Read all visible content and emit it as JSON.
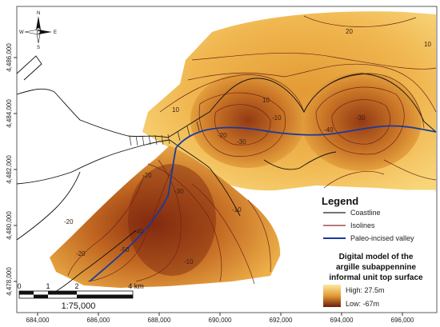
{
  "map": {
    "x_ticks": [
      "684,000",
      "686,000",
      "688,000",
      "690,000",
      "692,000",
      "694,000",
      "696,000"
    ],
    "y_ticks": [
      "4,486,000",
      "4,484,000",
      "4,482,000",
      "4,480,000",
      "4,478,000"
    ],
    "contour_labels": [
      "20",
      "10",
      "10",
      "-10",
      "-20",
      "-30",
      "-40",
      "-20",
      "-30",
      "-20",
      "-40",
      "-50",
      "-10",
      "10",
      "-30",
      "-20",
      "-10"
    ],
    "north_arrow": {
      "n": "N",
      "s": "S",
      "e": "E",
      "w": "W"
    }
  },
  "legend": {
    "title": "Legend",
    "items": [
      {
        "label": "Coastline",
        "color": "#222222"
      },
      {
        "label": "Isolines",
        "color": "#8b2a2a"
      },
      {
        "label": "Paleo-incised valley",
        "color": "#1a3a9a"
      }
    ]
  },
  "dem_legend": {
    "title_lines": [
      "Digital model of the",
      "argille subappennine",
      "informal unit top surface"
    ],
    "high": "High: 27.5m",
    "low": "Low: -67m",
    "color_high": "#fbe9a0",
    "color_low": "#6b1e0a"
  },
  "scale": {
    "labels": [
      "0",
      "1",
      "2",
      "4 km"
    ],
    "ratio": "1:75,000"
  }
}
